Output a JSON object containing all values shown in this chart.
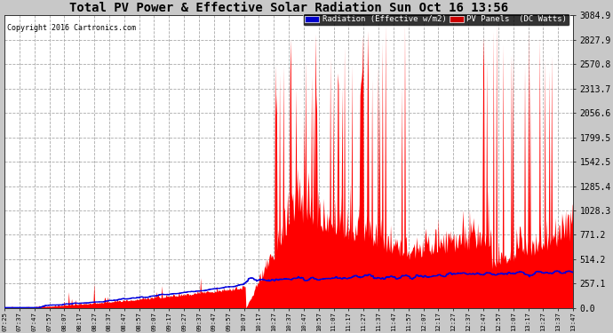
{
  "title": "Total PV Power & Effective Solar Radiation Sun Oct 16 13:56",
  "copyright": "Copyright 2016 Cartronics.com",
  "fig_bg_color": "#c8c8c8",
  "plot_bg_color": "#ffffff",
  "grid_color": "#aaaaaa",
  "title_color": "#000000",
  "ylabel_right_values": [
    0.0,
    257.1,
    514.2,
    771.2,
    1028.3,
    1285.4,
    1542.5,
    1799.5,
    2056.6,
    2313.7,
    2570.8,
    2827.9,
    3084.9
  ],
  "ymax": 3084.9,
  "legend_radiation_label": "Radiation (Effective w/m2)",
  "legend_pv_label": "PV Panels  (DC Watts)",
  "x_tick_labels": [
    "07:25",
    "07:37",
    "07:47",
    "07:57",
    "08:07",
    "08:17",
    "08:27",
    "08:37",
    "08:47",
    "08:57",
    "09:07",
    "09:17",
    "09:27",
    "09:37",
    "09:47",
    "09:57",
    "10:07",
    "10:17",
    "10:27",
    "10:37",
    "10:47",
    "10:57",
    "11:07",
    "11:17",
    "11:27",
    "11:37",
    "11:47",
    "11:57",
    "12:07",
    "12:17",
    "12:27",
    "12:37",
    "12:47",
    "12:57",
    "13:07",
    "13:17",
    "13:27",
    "13:37",
    "13:47"
  ],
  "red_color": "#ff0000",
  "blue_color": "#0000dd",
  "text_color": "#000000",
  "legend_rad_bg": "#0000cc",
  "legend_pv_bg": "#cc0000"
}
